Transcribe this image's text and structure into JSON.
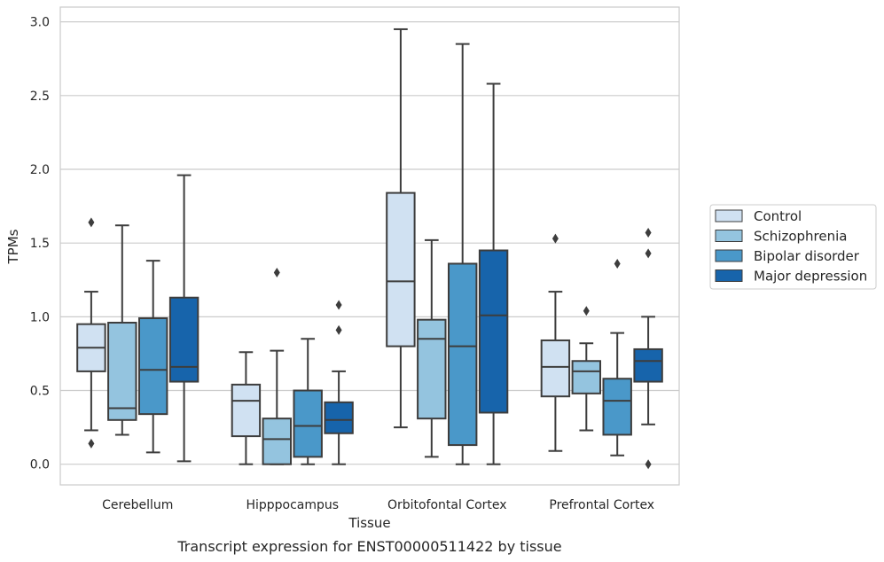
{
  "caption": "Transcript expression for ENST00000511422 by tissue",
  "chart_data": {
    "type": "boxplot",
    "xlabel": "Tissue",
    "ylabel": "TPMs",
    "ylim": [
      -0.14,
      3.1
    ],
    "yticks": [
      "0.0",
      "0.5",
      "1.0",
      "1.5",
      "2.0",
      "2.5",
      "3.0"
    ],
    "grid": true,
    "legend_position": "right",
    "categories": [
      "Cerebellum",
      "Hipppocampus",
      "Orbitofontal Cortex",
      "Prefrontal Cortex"
    ],
    "series": [
      {
        "name": "Control",
        "color": "#d0e1f2",
        "boxes": [
          {
            "whislo": 0.23,
            "q1": 0.63,
            "med": 0.79,
            "q3": 0.95,
            "whishi": 1.17,
            "fliers": [
              0.14,
              1.64
            ]
          },
          {
            "whislo": 0.0,
            "q1": 0.19,
            "med": 0.43,
            "q3": 0.54,
            "whishi": 0.76,
            "fliers": []
          },
          {
            "whislo": 0.25,
            "q1": 0.8,
            "med": 1.24,
            "q3": 1.84,
            "whishi": 2.95,
            "fliers": []
          },
          {
            "whislo": 0.09,
            "q1": 0.46,
            "med": 0.66,
            "q3": 0.84,
            "whishi": 1.17,
            "fliers": [
              1.53
            ]
          }
        ]
      },
      {
        "name": "Schizophrenia",
        "color": "#94c4df",
        "boxes": [
          {
            "whislo": 0.2,
            "q1": 0.3,
            "med": 0.38,
            "q3": 0.96,
            "whishi": 1.62,
            "fliers": []
          },
          {
            "whislo": 0.0,
            "q1": 0.0,
            "med": 0.17,
            "q3": 0.31,
            "whishi": 0.77,
            "fliers": [
              1.3
            ]
          },
          {
            "whislo": 0.05,
            "q1": 0.31,
            "med": 0.85,
            "q3": 0.98,
            "whishi": 1.52,
            "fliers": []
          },
          {
            "whislo": 0.23,
            "q1": 0.48,
            "med": 0.63,
            "q3": 0.7,
            "whishi": 0.82,
            "fliers": [
              1.04
            ]
          }
        ]
      },
      {
        "name": "Bipolar disorder",
        "color": "#4a98c9",
        "boxes": [
          {
            "whislo": 0.08,
            "q1": 0.34,
            "med": 0.64,
            "q3": 0.99,
            "whishi": 1.38,
            "fliers": []
          },
          {
            "whislo": 0.0,
            "q1": 0.05,
            "med": 0.26,
            "q3": 0.5,
            "whishi": 0.85,
            "fliers": []
          },
          {
            "whislo": 0.0,
            "q1": 0.13,
            "med": 0.8,
            "q3": 1.36,
            "whishi": 2.85,
            "fliers": []
          },
          {
            "whislo": 0.06,
            "q1": 0.2,
            "med": 0.43,
            "q3": 0.58,
            "whishi": 0.89,
            "fliers": [
              1.36
            ]
          }
        ]
      },
      {
        "name": "Major depression",
        "color": "#1764ab",
        "boxes": [
          {
            "whislo": 0.02,
            "q1": 0.56,
            "med": 0.66,
            "q3": 1.13,
            "whishi": 1.96,
            "fliers": []
          },
          {
            "whislo": 0.0,
            "q1": 0.21,
            "med": 0.3,
            "q3": 0.42,
            "whishi": 0.63,
            "fliers": [
              0.91,
              1.08
            ]
          },
          {
            "whislo": 0.0,
            "q1": 0.35,
            "med": 1.01,
            "q3": 1.45,
            "whishi": 2.58,
            "fliers": []
          },
          {
            "whislo": 0.27,
            "q1": 0.56,
            "med": 0.7,
            "q3": 0.78,
            "whishi": 1.0,
            "fliers": [
              0.0,
              1.43,
              1.57
            ]
          }
        ]
      }
    ]
  }
}
